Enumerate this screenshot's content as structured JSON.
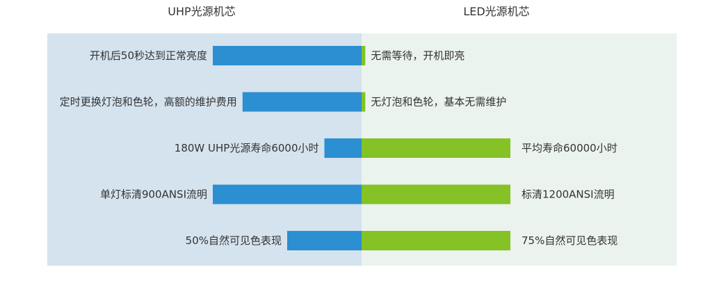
{
  "chart_data": {
    "type": "bar",
    "orientation": "horizontal-diverging",
    "series": [
      {
        "name": "UHP光源机芯",
        "color": "#2b8fd2",
        "panel_color": "#d5e3ee",
        "values": [
          2.0,
          1.6,
          0.5,
          2.0,
          1.0
        ],
        "labels": [
          "开机后50秒达到正常亮度",
          "定时更换灯泡和色轮，高额的维护费用",
          "180W UHP光源寿命6000小时",
          "单灯标清900ANSI流明",
          "50%自然可见色表现"
        ]
      },
      {
        "name": "LED光源机芯",
        "color": "#84c225",
        "panel_color": "#ebf3ee",
        "values": [
          0.05,
          0.05,
          2.0,
          2.0,
          2.0
        ],
        "labels": [
          "无需等待，开机即亮",
          "无灯泡和色轮，基本无需维护",
          "平均寿命60000小时",
          "标清1200ANSI流明",
          "75%自然可见色表现"
        ]
      }
    ],
    "xlim": [
      0,
      2.0
    ],
    "grid": false,
    "legend": "top"
  }
}
